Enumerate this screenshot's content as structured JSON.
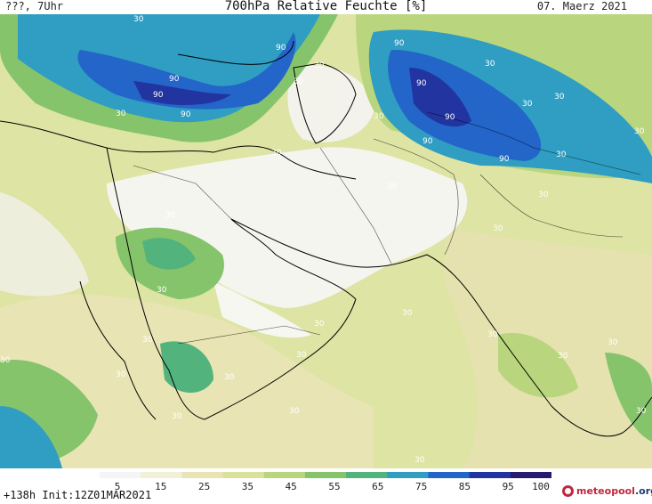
{
  "header": {
    "left_label": "???, 7Uhr",
    "title": "700hPa Relative Feuchte [%]",
    "date": "07. Maerz 2021"
  },
  "footer": {
    "run_info": "+138h  Init:12Z01MAR2021",
    "logo_main": "meteopool",
    "logo_suffix": ".org"
  },
  "colorbar": {
    "labels": [
      "5",
      "15",
      "25",
      "35",
      "45",
      "55",
      "65",
      "75",
      "85",
      "95",
      "100"
    ],
    "colors": [
      "#f5f5f5",
      "#f2f0d6",
      "#e9e4b4",
      "#dbe19a",
      "#b9d57d",
      "#86c46b",
      "#53b37d",
      "#2f9ec2",
      "#2365c8",
      "#21349f",
      "#2a1a6e"
    ]
  },
  "map": {
    "contour_labels": [
      "30",
      "90"
    ]
  },
  "colors": {
    "dry": "#f4f4ee",
    "moist_low": "#dde4a4",
    "moist_mid": "#86c46b",
    "moist_high": "#2f9ec2",
    "saturated": "#21349f",
    "border": "#000000"
  }
}
